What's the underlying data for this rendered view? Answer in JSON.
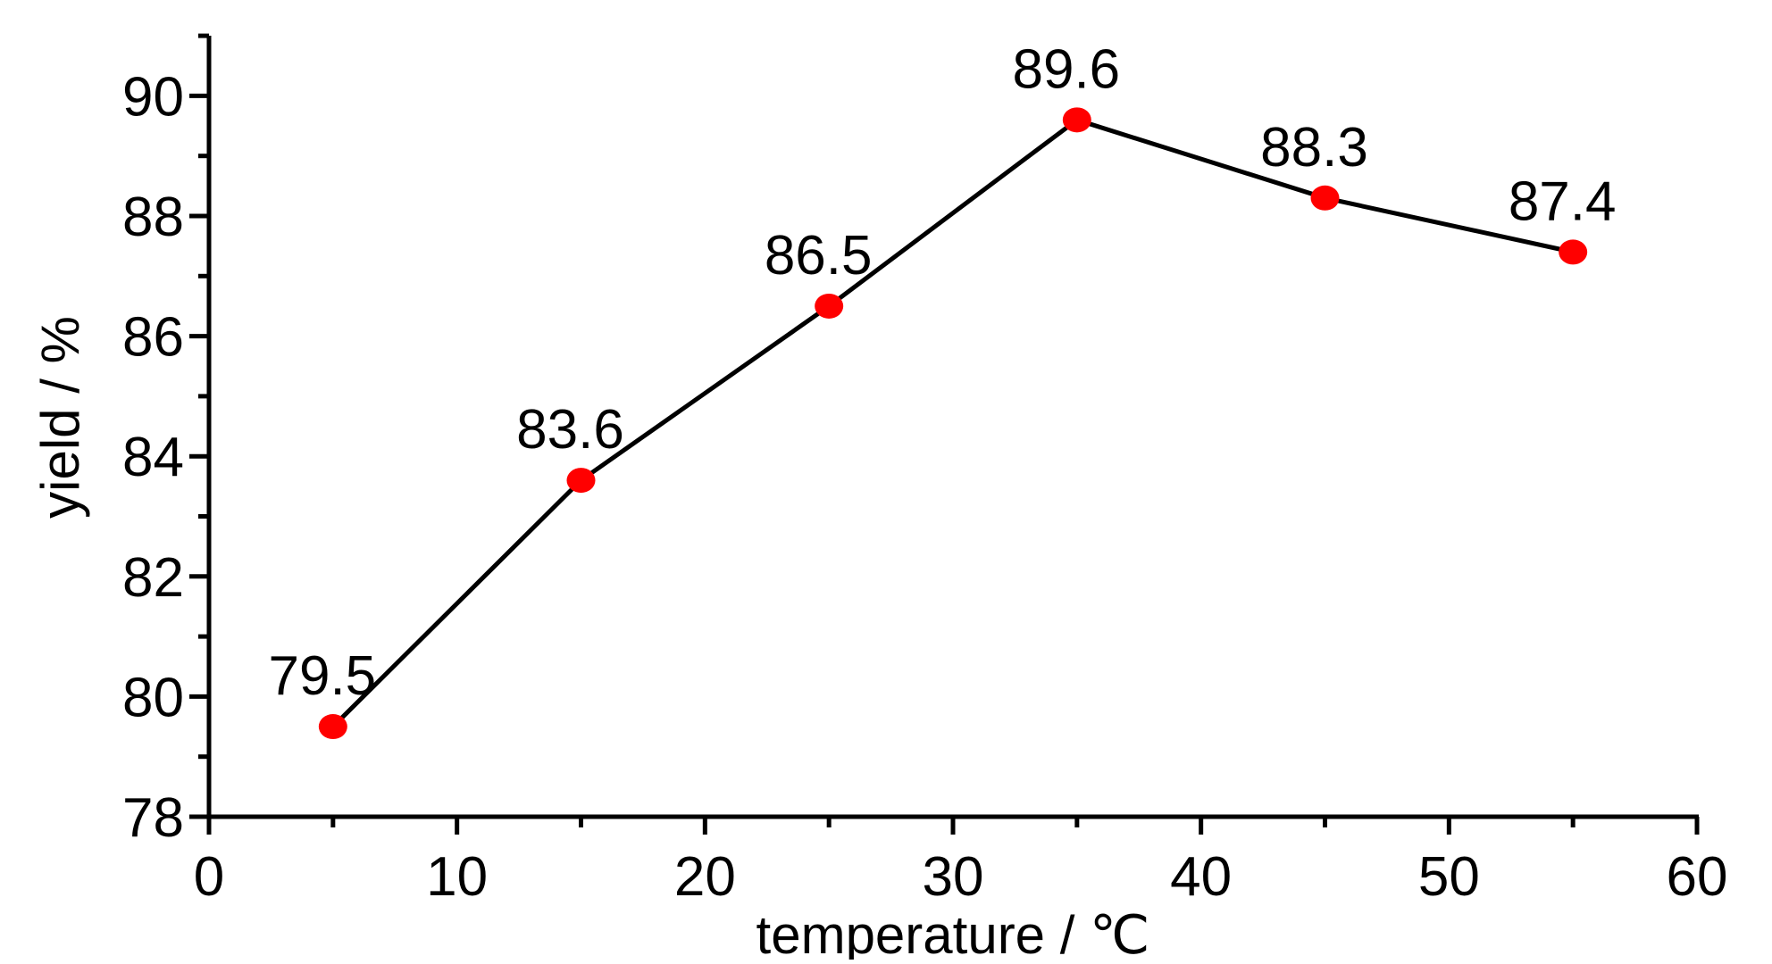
{
  "chart_data": {
    "type": "line",
    "title": "",
    "xlabel": "temperature / ℃",
    "ylabel": "yield / %",
    "xlim": [
      0,
      60
    ],
    "ylim": [
      78,
      91
    ],
    "x_ticks": [
      0,
      10,
      20,
      30,
      40,
      50,
      60
    ],
    "y_ticks": [
      78,
      80,
      82,
      84,
      86,
      88,
      90
    ],
    "x_tick_labels": [
      "0",
      "10",
      "20",
      "30",
      "40",
      "50",
      "60"
    ],
    "y_tick_labels": [
      "78",
      "80",
      "82",
      "84",
      "86",
      "88",
      "90"
    ],
    "grid": false,
    "legend": "none",
    "series": [
      {
        "x": [
          5,
          15,
          25,
          35,
          45,
          55
        ],
        "y": [
          79.5,
          83.6,
          86.5,
          89.6,
          88.3,
          87.4
        ],
        "data_labels": [
          "79.5",
          "83.6",
          "86.5",
          "89.6",
          "88.3",
          "87.4"
        ],
        "line_color": "#000000",
        "marker_color": "#ff0000"
      }
    ]
  }
}
